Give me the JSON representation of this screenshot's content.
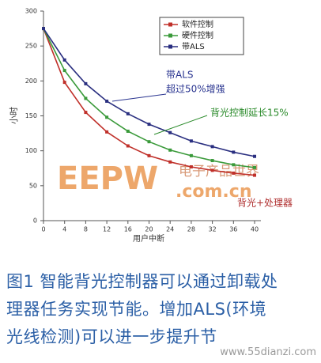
{
  "chart_data": {
    "type": "line",
    "y_label": "小时",
    "x_label": "用户中断",
    "x": [
      0,
      4,
      8,
      12,
      16,
      20,
      24,
      28,
      32,
      36,
      40
    ],
    "series": [
      {
        "name": "软件控制",
        "color": "#c0302a",
        "values": [
          275,
          198,
          155,
          127,
          107,
          93,
          84,
          77,
          72,
          68,
          65
        ]
      },
      {
        "name": "硬件控制",
        "color": "#3a9a3a",
        "values": [
          275,
          215,
          175,
          148,
          128,
          113,
          101,
          93,
          86,
          80,
          76
        ]
      },
      {
        "name": "带ALS",
        "color": "#2a2f80",
        "values": [
          275,
          230,
          196,
          171,
          153,
          138,
          126,
          114,
          106,
          98,
          92
        ]
      }
    ],
    "xlim": [
      0,
      40
    ],
    "xticks": [
      0,
      4,
      8,
      12,
      16,
      20,
      24,
      28,
      32,
      36,
      40
    ],
    "ylim": [
      0,
      300
    ],
    "yticks": [
      0,
      50,
      100,
      150,
      200,
      250,
      300
    ],
    "annotations": [
      "带ALS",
      "超过50%增强",
      "背光控制延长15%",
      "背光+处理器"
    ],
    "watermarks": [
      "EEPW",
      "电子产品世界",
      ".com.cn"
    ]
  },
  "caption": [
    "图1  智能背光控制器可以通过卸载处",
    "理器任务实现节能。增加ALS(环境",
    "光线检测)可以进一步提升节"
  ],
  "site_watermark": "www.55dianzi.com"
}
